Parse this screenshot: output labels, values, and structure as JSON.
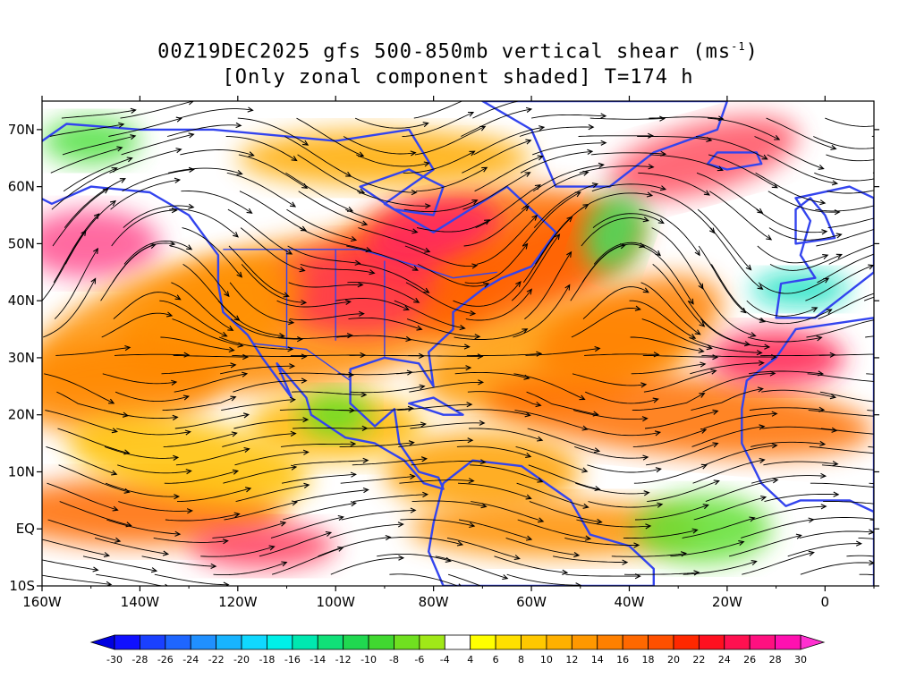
{
  "title": {
    "line1_prefix": "00Z19DEC2025 gfs 500-850mb vertical shear (ms",
    "line1_sup": "-1",
    "line1_suffix": ")",
    "line2": "[Only zonal component shaded] T=174 h"
  },
  "map": {
    "projection": "lat-lon",
    "lon_range": [
      -160,
      10
    ],
    "lat_range": [
      -10,
      75
    ],
    "lat_ticks": [
      {
        "value": 70,
        "label": "70N"
      },
      {
        "value": 60,
        "label": "60N"
      },
      {
        "value": 50,
        "label": "50N"
      },
      {
        "value": 40,
        "label": "40N"
      },
      {
        "value": 30,
        "label": "30N"
      },
      {
        "value": 20,
        "label": "20N"
      },
      {
        "value": 10,
        "label": "10N"
      },
      {
        "value": 0,
        "label": "EQ"
      },
      {
        "value": -10,
        "label": "10S"
      }
    ],
    "lon_ticks": [
      {
        "value": -160,
        "label": "160W"
      },
      {
        "value": -140,
        "label": "140W"
      },
      {
        "value": -120,
        "label": "120W"
      },
      {
        "value": -100,
        "label": "100W"
      },
      {
        "value": -80,
        "label": "80W"
      },
      {
        "value": -60,
        "label": "60W"
      },
      {
        "value": -40,
        "label": "40W"
      },
      {
        "value": -20,
        "label": "20W"
      },
      {
        "value": 0,
        "label": "0"
      }
    ],
    "coastline_color": "#3344ee",
    "streamline_color": "#000000"
  },
  "colorbar": {
    "labels": [
      "-30",
      "-28",
      "-26",
      "-24",
      "-22",
      "-20",
      "-18",
      "-16",
      "-14",
      "-12",
      "-10",
      "-8",
      "-6",
      "-4",
      "4",
      "6",
      "8",
      "10",
      "12",
      "14",
      "16",
      "18",
      "20",
      "22",
      "24",
      "26",
      "28",
      "30"
    ],
    "colors": [
      "#1010ff",
      "#1a40ff",
      "#1e66ff",
      "#2090ff",
      "#18b4ff",
      "#10d8ff",
      "#00f0e8",
      "#00e8b0",
      "#10e078",
      "#20d850",
      "#40d830",
      "#70e020",
      "#a0e818",
      "#ffffff",
      "#ffff00",
      "#ffe000",
      "#ffc800",
      "#ffb000",
      "#ff9800",
      "#ff8000",
      "#ff6800",
      "#ff5000",
      "#ff2800",
      "#ff1020",
      "#ff1050",
      "#ff1080",
      "#ff10b0"
    ],
    "under_color": "#0000e0",
    "over_color": "#ff30d0"
  }
}
